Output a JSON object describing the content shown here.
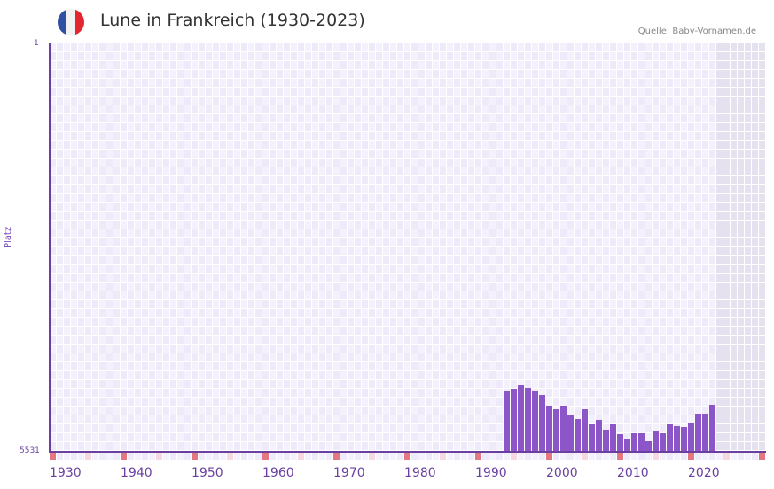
{
  "header": {
    "title": "Lune in Frankreich (1930-2023)",
    "source": "Quelle: Baby-Vornamen.de",
    "flag_icon": "france-flag-icon",
    "flag_colors": [
      "#2f4fa3",
      "#f2f2f2",
      "#e32630"
    ]
  },
  "axis": {
    "y_top": "1",
    "y_bottom": "5531",
    "y_title": "Platz",
    "x_ticks": [
      "1930",
      "1940",
      "1950",
      "1960",
      "1970",
      "1980",
      "1990",
      "2000",
      "2010",
      "2020"
    ]
  },
  "colors": {
    "bar": "#8c55c8",
    "axis": "#6a3fa0",
    "grid_a": "#efeafa",
    "grid_b": "#f4f1fc",
    "future_shade": "#e6e1ef",
    "decade_marker": "#e57782",
    "half_decade_marker": "#f5d8e0"
  },
  "chart_data": {
    "type": "bar",
    "title": "Lune in Frankreich (1930-2023)",
    "xlabel": "",
    "ylabel": "Platz",
    "ylim": [
      5531,
      1
    ],
    "y_inverted": true,
    "x_range": [
      1930,
      2030
    ],
    "grid": true,
    "source": "Quelle: Baby-Vornamen.de",
    "categories": [
      "1994",
      "1995",
      "1996",
      "1997",
      "1998",
      "1999",
      "2000",
      "2001",
      "2002",
      "2003",
      "2004",
      "2005",
      "2006",
      "2007",
      "2008",
      "2009",
      "2010",
      "2011",
      "2012",
      "2013",
      "2014",
      "2015",
      "2016",
      "2017",
      "2018",
      "2019",
      "2020",
      "2021",
      "2022",
      "2023"
    ],
    "values": [
      4705,
      4681,
      4633,
      4669,
      4705,
      4765,
      4909,
      4957,
      4909,
      5040,
      5088,
      4957,
      5160,
      5100,
      5232,
      5160,
      5291,
      5351,
      5279,
      5279,
      5387,
      5255,
      5279,
      5160,
      5184,
      5196,
      5148,
      5016,
      5016,
      4897
    ]
  }
}
